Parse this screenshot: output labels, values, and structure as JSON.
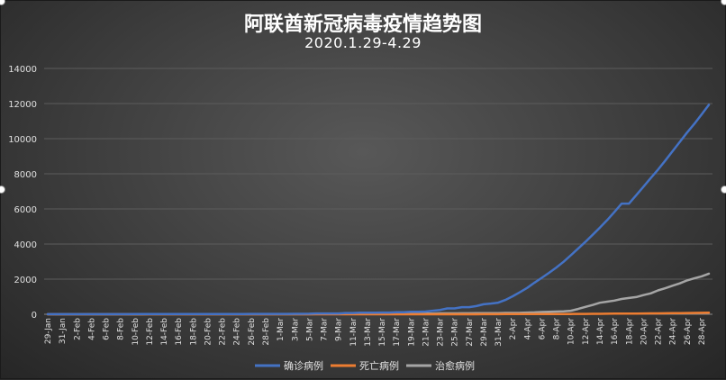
{
  "title": "阿联酋新冠病毒疫情趋势图",
  "subtitle": "2020.1.29-4.29",
  "chart_data": {
    "type": "line",
    "title": "阿联酋新冠病毒疫情趋势图",
    "subtitle": "2020.1.29-4.29",
    "xlabel": "",
    "ylabel": "",
    "ylim": [
      0,
      14000
    ],
    "yticks": [
      0,
      2000,
      4000,
      6000,
      8000,
      10000,
      12000,
      14000
    ],
    "ytick_labels": [
      "0",
      "2000",
      "4000",
      "6000",
      "8000",
      "10000",
      "12000",
      "14000"
    ],
    "grid": true,
    "legend_position": "bottom",
    "categories": [
      "29-Jan",
      "30-Jan",
      "31-Jan",
      "1-Feb",
      "2-Feb",
      "3-Feb",
      "4-Feb",
      "5-Feb",
      "6-Feb",
      "7-Feb",
      "8-Feb",
      "9-Feb",
      "10-Feb",
      "11-Feb",
      "12-Feb",
      "13-Feb",
      "14-Feb",
      "15-Feb",
      "16-Feb",
      "17-Feb",
      "18-Feb",
      "19-Feb",
      "20-Feb",
      "21-Feb",
      "22-Feb",
      "23-Feb",
      "24-Feb",
      "25-Feb",
      "26-Feb",
      "27-Feb",
      "28-Feb",
      "29-Feb",
      "1-Mar",
      "2-Mar",
      "3-Mar",
      "4-Mar",
      "5-Mar",
      "6-Mar",
      "7-Mar",
      "8-Mar",
      "9-Mar",
      "10-Mar",
      "11-Mar",
      "12-Mar",
      "13-Mar",
      "14-Mar",
      "15-Mar",
      "16-Mar",
      "17-Mar",
      "18-Mar",
      "19-Mar",
      "20-Mar",
      "21-Mar",
      "22-Mar",
      "23-Mar",
      "24-Mar",
      "25-Mar",
      "26-Mar",
      "27-Mar",
      "28-Mar",
      "29-Mar",
      "30-Mar",
      "31-Mar",
      "1-Apr",
      "2-Apr",
      "3-Apr",
      "4-Apr",
      "5-Apr",
      "6-Apr",
      "7-Apr",
      "8-Apr",
      "9-Apr",
      "10-Apr",
      "11-Apr",
      "12-Apr",
      "13-Apr",
      "14-Apr",
      "15-Apr",
      "16-Apr",
      "17-Apr",
      "18-Apr",
      "19-Apr",
      "20-Apr",
      "21-Apr",
      "22-Apr",
      "23-Apr",
      "24-Apr",
      "25-Apr",
      "26-Apr",
      "27-Apr",
      "28-Apr",
      "29-Apr"
    ],
    "tick_labels": [
      "29-Jan",
      "31-Jan",
      "2-Feb",
      "4-Feb",
      "6-Feb",
      "8-Feb",
      "10-Feb",
      "12-Feb",
      "14-Feb",
      "16-Feb",
      "18-Feb",
      "20-Feb",
      "22-Feb",
      "24-Feb",
      "26-Feb",
      "28-Feb",
      "1-Mar",
      "3-Mar",
      "5-Mar",
      "7-Mar",
      "9-Mar",
      "11-Mar",
      "13-Mar",
      "15-Mar",
      "17-Mar",
      "19-Mar",
      "21-Mar",
      "23-Mar",
      "25-Mar",
      "27-Mar",
      "29-Mar",
      "31-Mar",
      "2-Apr",
      "4-Apr",
      "6-Apr",
      "8-Apr",
      "10-Apr",
      "12-Apr",
      "14-Apr",
      "16-Apr",
      "18-Apr",
      "20-Apr",
      "22-Apr",
      "24-Apr",
      "26-Apr",
      "28-Apr"
    ],
    "series": [
      {
        "name": "确诊病例",
        "color": "#4472c4",
        "values": [
          4,
          4,
          4,
          4,
          5,
          5,
          5,
          5,
          5,
          7,
          7,
          7,
          8,
          8,
          8,
          8,
          8,
          8,
          9,
          9,
          9,
          9,
          9,
          11,
          13,
          13,
          13,
          13,
          19,
          19,
          19,
          19,
          21,
          21,
          27,
          27,
          29,
          45,
          45,
          45,
          45,
          74,
          74,
          85,
          85,
          85,
          98,
          98,
          113,
          113,
          140,
          140,
          153,
          198,
          248,
          333,
          333,
          405,
          405,
          468,
          570,
          611,
          664,
          814,
          1024,
          1264,
          1505,
          1799,
          2076,
          2359,
          2659,
          2990,
          3360,
          3736,
          4123,
          4521,
          4933,
          5365,
          5825,
          6302,
          6302,
          6781,
          7265,
          7755,
          8238,
          8756,
          9281,
          9813,
          10349,
          10839,
          11380,
          11929
        ]
      },
      {
        "name": "死亡病例",
        "color": "#ed7d31",
        "values": [
          0,
          0,
          0,
          0,
          0,
          0,
          0,
          0,
          0,
          0,
          0,
          0,
          0,
          0,
          0,
          0,
          0,
          0,
          0,
          0,
          0,
          0,
          0,
          0,
          0,
          0,
          0,
          0,
          0,
          0,
          0,
          0,
          0,
          0,
          0,
          0,
          0,
          0,
          0,
          0,
          0,
          0,
          0,
          0,
          0,
          0,
          0,
          0,
          0,
          0,
          0,
          2,
          2,
          2,
          2,
          2,
          2,
          2,
          2,
          2,
          3,
          5,
          5,
          8,
          8,
          8,
          9,
          10,
          11,
          12,
          14,
          16,
          16,
          20,
          22,
          25,
          28,
          30,
          35,
          37,
          37,
          41,
          46,
          50,
          52,
          56,
          60,
          64,
          71,
          76,
          82,
          89
        ]
      },
      {
        "name": "治愈病例",
        "color": "#a5a5a5",
        "values": [
          0,
          0,
          0,
          0,
          0,
          0,
          0,
          0,
          1,
          1,
          1,
          1,
          1,
          1,
          3,
          3,
          3,
          4,
          4,
          4,
          5,
          5,
          5,
          5,
          5,
          5,
          5,
          5,
          5,
          5,
          5,
          5,
          5,
          5,
          5,
          5,
          5,
          12,
          12,
          12,
          12,
          17,
          17,
          20,
          20,
          20,
          23,
          23,
          26,
          26,
          31,
          31,
          38,
          41,
          52,
          52,
          52,
          58,
          58,
          60,
          61,
          61,
          61,
          78,
          78,
          84,
          99,
          110,
          126,
          141,
          152,
          167,
          200,
          300,
          420,
          530,
          657,
          720,
          780,
          870,
          928,
          980,
          1093,
          1188,
          1360,
          1480,
          1625,
          1761,
          1926,
          2047,
          2157,
          2311
        ]
      }
    ]
  }
}
